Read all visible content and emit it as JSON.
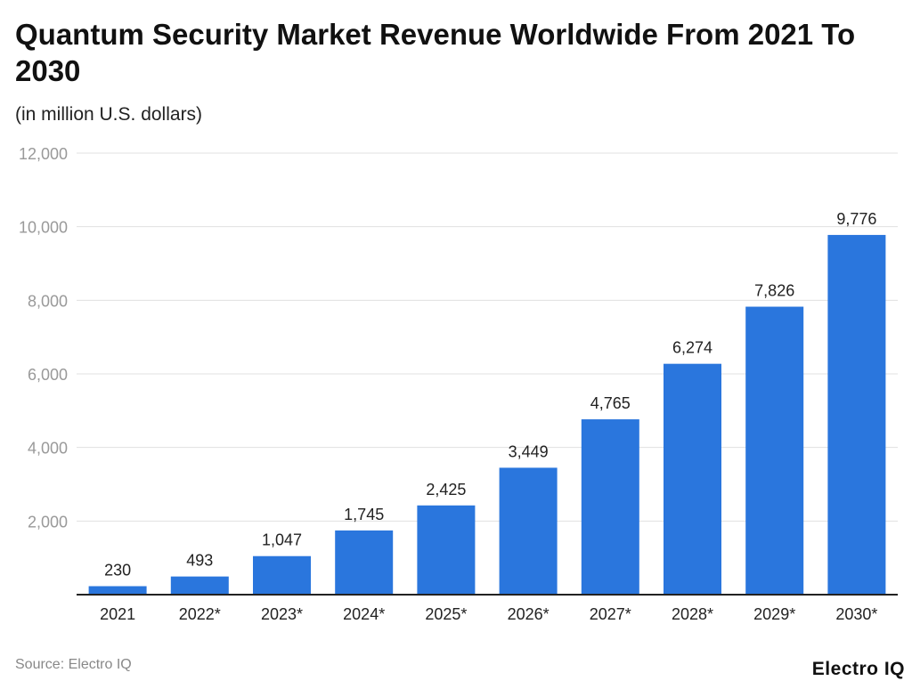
{
  "title": "Quantum Security Market Revenue Worldwide From 2021 To 2030",
  "subtitle": "(in million U.S. dollars)",
  "source": "Source: Electro IQ",
  "logo": "Electro IQ",
  "colors": {
    "bar": "#2a76dd",
    "grid": "#e0e0e0",
    "axis": "#222222"
  },
  "chart_data": {
    "type": "bar",
    "title": "Quantum Security Market Revenue Worldwide From 2021 To 2030",
    "subtitle": "(in million U.S. dollars)",
    "categories": [
      "2021",
      "2022*",
      "2023*",
      "2024*",
      "2025*",
      "2026*",
      "2027*",
      "2028*",
      "2029*",
      "2030*"
    ],
    "values": [
      230,
      493,
      1047,
      1745,
      2425,
      3449,
      4765,
      6274,
      7826,
      9776
    ],
    "data_labels": [
      "230",
      "493",
      "1,047",
      "1,745",
      "2,425",
      "3,449",
      "4,765",
      "6,274",
      "7,826",
      "9,776"
    ],
    "yticks": [
      "2,000",
      "4,000",
      "6,000",
      "8,000",
      "10,000",
      "12,000"
    ],
    "ytick_values": [
      2000,
      4000,
      6000,
      8000,
      10000,
      12000
    ],
    "ylim": [
      0,
      12000
    ],
    "grid": true,
    "legend": "none"
  }
}
